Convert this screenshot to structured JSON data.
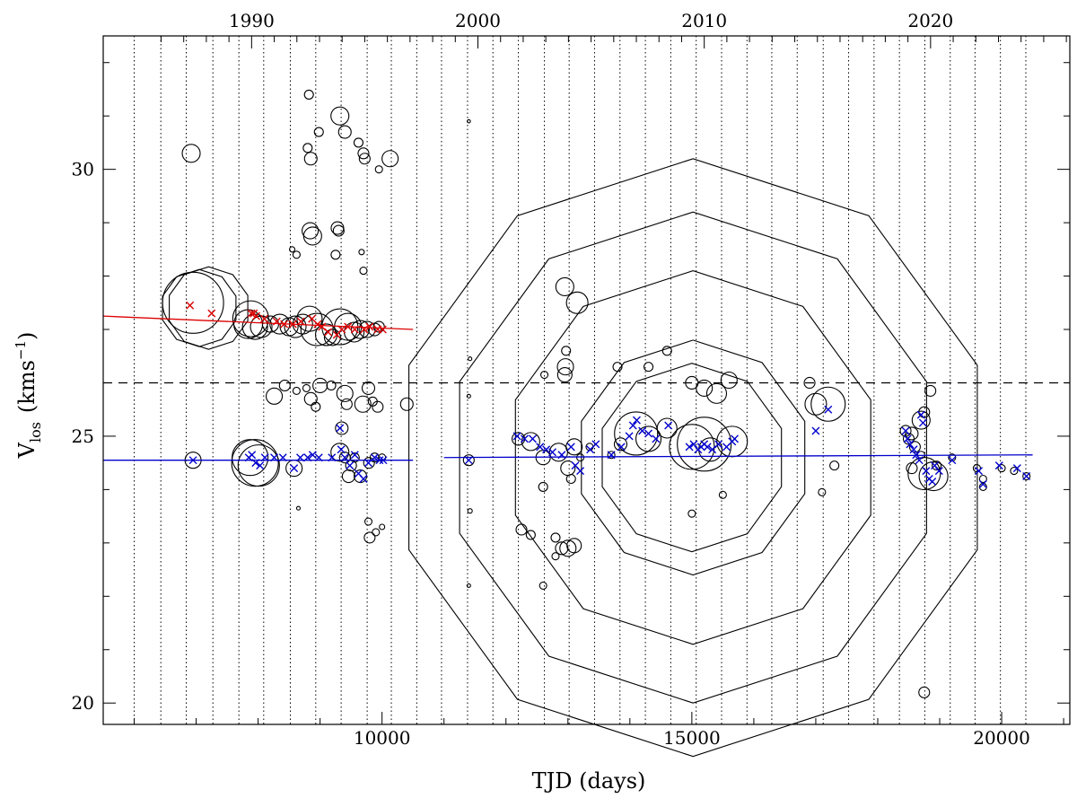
{
  "chart_data": {
    "type": "scatter",
    "xlabel": "TJD (days)",
    "ylabel_main": "V",
    "ylabel_sub": "los",
    "ylabel_units_open": "(kms",
    "ylabel_units_exp": "−1",
    "ylabel_units_close": ")",
    "xlim": [
      5500,
      21100
    ],
    "ylim": [
      19.6,
      32.5
    ],
    "x_ticks": [
      10000,
      15000,
      20000
    ],
    "x_tick_labels": [
      "10000",
      "15000",
      "20000"
    ],
    "x_minor_step": 1000,
    "y_ticks": [
      20,
      25,
      30
    ],
    "y_tick_labels": [
      "20",
      "25",
      "30"
    ],
    "y_minor_step": 1,
    "top_axis": {
      "ticks": [
        7895,
        11547,
        15200,
        18852
      ],
      "tick_labels": [
        "1990",
        "2000",
        "2010",
        "2020"
      ]
    },
    "dashed_line_y": 26.0,
    "vertical_dotted_x": [
      6000,
      6430,
      6840,
      7270,
      7690,
      8090,
      8520,
      8930,
      9340,
      9760,
      10150,
      10560,
      10960,
      11380,
      11790,
      12200,
      12620,
      13020,
      13430,
      13840,
      14250,
      14660,
      15070,
      15480,
      15890,
      16290,
      16700,
      17120,
      17530,
      17940,
      18350,
      18760,
      19170,
      19570,
      19980,
      20390
    ],
    "fits": [
      {
        "name": "red-fit",
        "color": "#dd0000",
        "x": [
          5500,
          10500
        ],
        "y": [
          27.25,
          27.0
        ]
      },
      {
        "name": "blue-fit-early",
        "color": "#0000cc",
        "x": [
          5500,
          10500
        ],
        "y": [
          24.55,
          24.55
        ]
      },
      {
        "name": "blue-fit-late",
        "color": "#0000cc",
        "x": [
          11000,
          20500
        ],
        "y": [
          24.6,
          24.65
        ]
      }
    ],
    "circles": [
      [
        6920,
        30.3,
        1.0
      ],
      [
        6950,
        27.5,
        3.4
      ],
      [
        7050,
        27.4,
        4.3
      ],
      [
        7200,
        27.4,
        4.6
      ],
      [
        7840,
        27.1,
        1.6
      ],
      [
        7880,
        27.2,
        2.0
      ],
      [
        7950,
        27.05,
        1.4
      ],
      [
        8050,
        27.05,
        1.2
      ],
      [
        8200,
        27.1,
        0.9
      ],
      [
        8350,
        27.1,
        1.1
      ],
      [
        8500,
        27.05,
        1.0
      ],
      [
        8600,
        27.05,
        1.2
      ],
      [
        8720,
        27.1,
        1.1
      ],
      [
        8830,
        27.2,
        1.4
      ],
      [
        8950,
        27.0,
        1.8
      ],
      [
        9100,
        26.9,
        1.2
      ],
      [
        9200,
        26.85,
        0.9
      ],
      [
        9320,
        27.05,
        2.0
      ],
      [
        9450,
        27.05,
        1.5
      ],
      [
        9550,
        26.95,
        1.1
      ],
      [
        9650,
        27.0,
        1.0
      ],
      [
        9760,
        27.0,
        0.9
      ],
      [
        9880,
        27.0,
        0.7
      ],
      [
        9950,
        27.05,
        0.6
      ],
      [
        8980,
        30.7,
        0.5
      ],
      [
        8820,
        31.4,
        0.5
      ],
      [
        9320,
        31.0,
        1.0
      ],
      [
        9400,
        30.7,
        0.7
      ],
      [
        8800,
        30.4,
        0.5
      ],
      [
        8850,
        30.2,
        0.7
      ],
      [
        9620,
        30.5,
        0.5
      ],
      [
        9700,
        30.3,
        0.6
      ],
      [
        9720,
        30.2,
        0.6
      ],
      [
        9950,
        30.0,
        0.4
      ],
      [
        10130,
        30.2,
        0.9
      ],
      [
        8880,
        28.75,
        1.0
      ],
      [
        8840,
        28.85,
        0.9
      ],
      [
        9280,
        28.9,
        0.7
      ],
      [
        9300,
        28.85,
        0.6
      ],
      [
        9250,
        28.4,
        0.5
      ],
      [
        8550,
        28.5,
        0.3
      ],
      [
        8620,
        28.4,
        0.4
      ],
      [
        9670,
        28.45,
        0.3
      ],
      [
        9700,
        28.1,
        0.4
      ],
      [
        8430,
        25.95,
        0.6
      ],
      [
        8620,
        25.85,
        0.4
      ],
      [
        8780,
        25.9,
        0.4
      ],
      [
        8850,
        25.7,
        0.7
      ],
      [
        8930,
        25.55,
        0.5
      ],
      [
        9000,
        25.95,
        0.8
      ],
      [
        9180,
        25.95,
        0.5
      ],
      [
        9400,
        25.8,
        0.9
      ],
      [
        9430,
        25.6,
        0.6
      ],
      [
        9780,
        25.9,
        0.7
      ],
      [
        9850,
        25.65,
        0.5
      ],
      [
        9930,
        25.55,
        0.6
      ],
      [
        9690,
        25.6,
        0.9
      ],
      [
        8260,
        25.75,
        0.9
      ],
      [
        10400,
        25.6,
        0.7
      ],
      [
        9350,
        25.15,
        0.7
      ],
      [
        7870,
        24.6,
        2.0
      ],
      [
        7950,
        24.5,
        2.6
      ],
      [
        8010,
        24.45,
        2.3
      ],
      [
        8580,
        24.4,
        0.9
      ],
      [
        9320,
        24.7,
        1.0
      ],
      [
        9400,
        24.6,
        0.6
      ],
      [
        9500,
        24.45,
        0.6
      ],
      [
        9650,
        24.25,
        0.7
      ],
      [
        9790,
        24.5,
        0.6
      ],
      [
        9880,
        24.6,
        0.5
      ],
      [
        10000,
        24.6,
        0.4
      ],
      [
        9460,
        24.25,
        0.7
      ],
      [
        9560,
        24.6,
        0.5
      ],
      [
        6950,
        24.55,
        0.9
      ],
      [
        8650,
        23.65,
        0.2
      ],
      [
        9780,
        23.4,
        0.4
      ],
      [
        9800,
        23.1,
        0.6
      ],
      [
        9900,
        23.2,
        0.4
      ],
      [
        10000,
        23.3,
        0.3
      ],
      [
        11400,
        30.9,
        0.1
      ],
      [
        11420,
        26.45,
        0.2
      ],
      [
        11400,
        25.75,
        0.2
      ],
      [
        11400,
        24.55,
        0.6
      ],
      [
        11420,
        23.6,
        0.25
      ],
      [
        11400,
        22.2,
        0.2
      ],
      [
        12620,
        26.15,
        0.4
      ],
      [
        12970,
        26.6,
        0.5
      ],
      [
        12950,
        27.8,
        1.0
      ],
      [
        13150,
        27.5,
        1.2
      ],
      [
        12960,
        26.3,
        0.9
      ],
      [
        12950,
        26.15,
        0.8
      ],
      [
        12200,
        24.95,
        0.7
      ],
      [
        12400,
        24.9,
        1.0
      ],
      [
        12600,
        24.6,
        0.8
      ],
      [
        12850,
        24.7,
        1.0
      ],
      [
        13100,
        24.8,
        0.9
      ],
      [
        13000,
        24.4,
        0.8
      ],
      [
        12600,
        24.05,
        0.5
      ],
      [
        12250,
        23.25,
        0.6
      ],
      [
        12400,
        23.15,
        0.5
      ],
      [
        12800,
        23.1,
        0.5
      ],
      [
        12900,
        22.9,
        0.7
      ],
      [
        13000,
        22.9,
        0.9
      ],
      [
        12800,
        22.75,
        0.4
      ],
      [
        12600,
        22.2,
        0.4
      ],
      [
        13100,
        22.95,
        0.8
      ],
      [
        13050,
        24.2,
        0.5
      ],
      [
        13200,
        24.6,
        0.4
      ],
      [
        13350,
        24.8,
        0.4
      ],
      [
        13700,
        24.65,
        0.4
      ],
      [
        13850,
        24.85,
        0.7
      ],
      [
        14100,
        25.05,
        2.4
      ],
      [
        14300,
        24.95,
        1.4
      ],
      [
        14600,
        25.15,
        1.1
      ],
      [
        14300,
        26.3,
        0.5
      ],
      [
        14600,
        26.6,
        0.5
      ],
      [
        13800,
        26.3,
        0.5
      ],
      [
        15000,
        26.0,
        0.7
      ],
      [
        15200,
        25.9,
        0.9
      ],
      [
        15400,
        25.8,
        1.1
      ],
      [
        15600,
        26.05,
        0.9
      ],
      [
        15000,
        24.8,
        2.5
      ],
      [
        15200,
        24.85,
        3.0
      ],
      [
        15650,
        24.9,
        1.7
      ],
      [
        15300,
        24.75,
        1.3
      ],
      [
        15500,
        23.9,
        0.4
      ],
      [
        15000,
        23.55,
        0.4
      ],
      [
        15000,
        24.6,
        10.5
      ],
      [
        17200,
        25.6,
        1.9
      ],
      [
        17000,
        25.6,
        1.2
      ],
      [
        16900,
        26.0,
        0.6
      ],
      [
        17100,
        23.95,
        0.4
      ],
      [
        17300,
        24.45,
        0.5
      ],
      [
        18450,
        25.1,
        0.6
      ],
      [
        18550,
        25.05,
        0.7
      ],
      [
        18500,
        24.95,
        0.6
      ],
      [
        18600,
        24.8,
        0.6
      ],
      [
        18700,
        24.65,
        0.4
      ],
      [
        18550,
        24.4,
        0.6
      ],
      [
        18700,
        25.3,
        1.0
      ],
      [
        18750,
        25.45,
        0.6
      ],
      [
        18850,
        25.85,
        0.6
      ],
      [
        18750,
        24.3,
        1.8
      ],
      [
        18900,
        24.25,
        1.6
      ],
      [
        18950,
        24.45,
        0.5
      ],
      [
        19200,
        24.6,
        0.4
      ],
      [
        19600,
        24.4,
        0.4
      ],
      [
        19700,
        24.2,
        0.4
      ],
      [
        19700,
        24.05,
        0.4
      ],
      [
        20000,
        24.4,
        0.4
      ],
      [
        20200,
        24.35,
        0.4
      ],
      [
        20400,
        24.25,
        0.4
      ],
      [
        18750,
        20.2,
        0.6
      ]
    ],
    "red_crosses": [
      [
        6900,
        27.45
      ],
      [
        7250,
        27.3
      ],
      [
        7890,
        27.3
      ],
      [
        7930,
        27.3
      ],
      [
        7970,
        27.25
      ],
      [
        8100,
        27.2
      ],
      [
        8300,
        27.15
      ],
      [
        8420,
        27.1
      ],
      [
        8560,
        27.1
      ],
      [
        8690,
        27.15
      ],
      [
        8870,
        27.2
      ],
      [
        8960,
        27.1
      ],
      [
        9030,
        27.05
      ],
      [
        9130,
        26.95
      ],
      [
        9270,
        26.9
      ],
      [
        9350,
        27.0
      ],
      [
        9450,
        27.05
      ],
      [
        9560,
        27.0
      ],
      [
        9710,
        27.0
      ],
      [
        9800,
        27.05
      ],
      [
        9930,
        27.0
      ],
      [
        10010,
        27.0
      ]
    ],
    "blue_crosses": [
      [
        6950,
        24.55
      ],
      [
        7850,
        24.6
      ],
      [
        7900,
        24.65
      ],
      [
        7960,
        24.5
      ],
      [
        8030,
        24.45
      ],
      [
        8110,
        24.6
      ],
      [
        8260,
        24.6
      ],
      [
        8400,
        24.6
      ],
      [
        8580,
        24.4
      ],
      [
        8680,
        24.6
      ],
      [
        8800,
        24.6
      ],
      [
        8880,
        24.65
      ],
      [
        8980,
        24.6
      ],
      [
        9190,
        24.6
      ],
      [
        9320,
        25.15
      ],
      [
        9340,
        24.75
      ],
      [
        9400,
        24.6
      ],
      [
        9480,
        24.45
      ],
      [
        9560,
        24.65
      ],
      [
        9620,
        24.3
      ],
      [
        9700,
        24.2
      ],
      [
        9780,
        24.5
      ],
      [
        9880,
        24.6
      ],
      [
        9960,
        24.55
      ],
      [
        10020,
        24.55
      ],
      [
        11400,
        24.55
      ],
      [
        12180,
        25.0
      ],
      [
        12300,
        24.95
      ],
      [
        12430,
        24.95
      ],
      [
        12550,
        24.8
      ],
      [
        12650,
        24.75
      ],
      [
        12750,
        24.7
      ],
      [
        12900,
        24.65
      ],
      [
        13050,
        24.8
      ],
      [
        13120,
        24.45
      ],
      [
        13200,
        24.35
      ],
      [
        13360,
        24.75
      ],
      [
        13450,
        24.85
      ],
      [
        13700,
        24.65
      ],
      [
        13860,
        24.8
      ],
      [
        13990,
        25.0
      ],
      [
        14050,
        25.2
      ],
      [
        14110,
        25.3
      ],
      [
        14200,
        25.1
      ],
      [
        14300,
        25.05
      ],
      [
        14420,
        24.95
      ],
      [
        14620,
        25.2
      ],
      [
        14960,
        24.8
      ],
      [
        15030,
        24.85
      ],
      [
        15100,
        24.75
      ],
      [
        15150,
        24.8
      ],
      [
        15200,
        24.85
      ],
      [
        15250,
        24.8
      ],
      [
        15330,
        24.75
      ],
      [
        15430,
        24.85
      ],
      [
        15560,
        24.8
      ],
      [
        15650,
        24.9
      ],
      [
        15690,
        24.95
      ],
      [
        17200,
        25.5
      ],
      [
        17000,
        25.1
      ],
      [
        18450,
        25.1
      ],
      [
        18480,
        24.95
      ],
      [
        18520,
        24.85
      ],
      [
        18580,
        24.75
      ],
      [
        18620,
        24.65
      ],
      [
        18670,
        24.55
      ],
      [
        18700,
        25.4
      ],
      [
        18730,
        25.25
      ],
      [
        18780,
        24.35
      ],
      [
        18830,
        24.2
      ],
      [
        18880,
        24.15
      ],
      [
        18920,
        24.45
      ],
      [
        18990,
        24.35
      ],
      [
        19200,
        24.55
      ],
      [
        19630,
        24.35
      ],
      [
        19700,
        24.1
      ],
      [
        19960,
        24.45
      ],
      [
        20250,
        24.4
      ],
      [
        20400,
        24.25
      ]
    ],
    "big_decagons": [
      {
        "cx": 15020,
        "cy": 24.6,
        "radii": [
          2.2,
          3.5,
          4.6,
          5.6
        ]
      }
    ]
  }
}
